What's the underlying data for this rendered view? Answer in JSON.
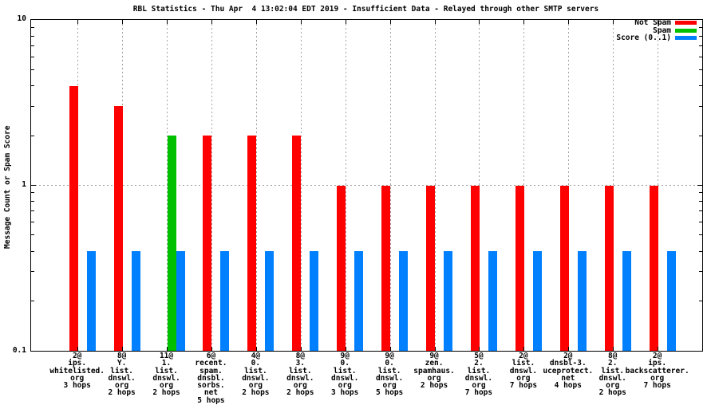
{
  "chart_data": {
    "type": "bar",
    "title": "RBL Statistics - Thu Apr  4 13:02:04 EDT 2019 - Insufficient Data - Relayed through other SMTP servers",
    "ylabel": "Message Count or Spam Score",
    "yscale": "log",
    "ylim": [
      0.1,
      10
    ],
    "ytick_labels": [
      "0.1",
      "1",
      "10"
    ],
    "grid": true,
    "legend_position": "top-right",
    "categories": [
      [
        "2@",
        "ips.",
        "whitelisted.",
        "org",
        "3 hops"
      ],
      [
        "8@",
        "Y.",
        "list.",
        "dnswl.",
        "org",
        "2 hops"
      ],
      [
        "11@",
        "1.",
        "list.",
        "dnswl.",
        "org",
        "2 hops"
      ],
      [
        "6@",
        "recent.",
        "spam.",
        "dnsbl.",
        "sorbs.",
        "net",
        "5 hops"
      ],
      [
        "4@",
        "0.",
        "list.",
        "dnswl.",
        "org",
        "2 hops"
      ],
      [
        "8@",
        "3.",
        "list.",
        "dnswl.",
        "org",
        "2 hops"
      ],
      [
        "9@",
        "0.",
        "list.",
        "dnswl.",
        "org",
        "3 hops"
      ],
      [
        "9@",
        "0.",
        "list.",
        "dnswl.",
        "org",
        "5 hops"
      ],
      [
        "9@",
        "zen.",
        "spamhaus.",
        "org",
        "2 hops"
      ],
      [
        "5@",
        "2.",
        "list.",
        "dnswl.",
        "org",
        "7 hops"
      ],
      [
        "2@",
        "list.",
        "dnswl.",
        "org",
        "7 hops"
      ],
      [
        "2@",
        "dnsbl-3.",
        "uceprotect.",
        "net",
        "4 hops"
      ],
      [
        "8@",
        "2.",
        "list.",
        "dnswl.",
        "org",
        "2 hops"
      ],
      [
        "2@",
        "ips.",
        "backscatterer.",
        "org",
        "7 hops"
      ]
    ],
    "series": [
      {
        "name": "Not Spam",
        "color": "#ff0000",
        "values": [
          4,
          3,
          0,
          2,
          2,
          2,
          1,
          1,
          1,
          1,
          1,
          1,
          1,
          1
        ]
      },
      {
        "name": "Spam",
        "color": "#00c000",
        "values": [
          0,
          0,
          2,
          0,
          0,
          0,
          0,
          0,
          0,
          0,
          0,
          0,
          0,
          0
        ]
      },
      {
        "name": "Score (0..1)",
        "color": "#0080ff",
        "values": [
          0.4,
          0.4,
          0.4,
          0.4,
          0.4,
          0.4,
          0.4,
          0.4,
          0.4,
          0.4,
          0.4,
          0.4,
          0.4,
          0.4
        ]
      }
    ]
  }
}
